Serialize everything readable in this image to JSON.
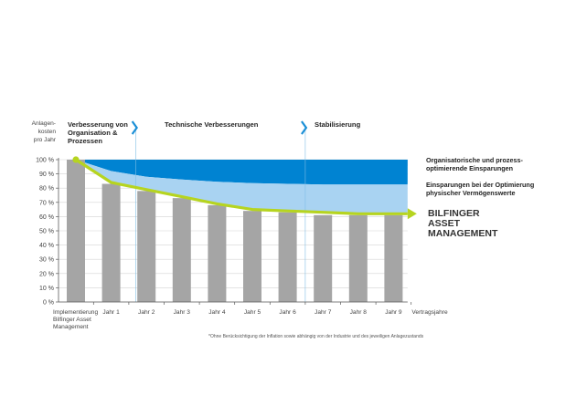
{
  "chart_data": {
    "type": "bar",
    "ylabel_lines": [
      "Anlagen-",
      "kosten",
      "pro Jahr"
    ],
    "xlabel": "Vertragsjahre",
    "ylim": [
      0,
      100
    ],
    "yticks": [
      "0 %",
      "10 %",
      "20 %",
      "30 %",
      "40 %",
      "50 %",
      "60 %",
      "70 %",
      "80 %",
      "90 %",
      "100 %"
    ],
    "categories": [
      "Implementierung Bilfinger Asset Management",
      "Jahr 1",
      "Jahr 2",
      "Jahr 3",
      "Jahr 4",
      "Jahr 5",
      "Jahr 6",
      "Jahr 7",
      "Jahr 8",
      "Jahr 9"
    ],
    "category_lines": [
      [
        "Implementierung",
        "Bilfinger Asset",
        "Management"
      ],
      [
        "Jahr 1"
      ],
      [
        "Jahr 2"
      ],
      [
        "Jahr 3"
      ],
      [
        "Jahr 4"
      ],
      [
        "Jahr 5"
      ],
      [
        "Jahr 6"
      ],
      [
        "Jahr 7"
      ],
      [
        "Jahr 8"
      ],
      [
        "Jahr 9"
      ]
    ],
    "series": [
      {
        "type": "bar",
        "values": [
          100,
          83,
          78,
          73,
          68,
          64,
          63,
          61,
          61,
          61
        ]
      },
      {
        "type": "line",
        "x": [
          0,
          1,
          2,
          3,
          4,
          5,
          6,
          7,
          8,
          9,
          9.4
        ],
        "values": [
          100,
          84,
          79,
          74,
          69,
          65,
          64,
          63,
          62,
          62,
          62
        ]
      }
    ],
    "bands": {
      "top": 100,
      "dark_lower": {
        "x": [
          0,
          1,
          2,
          3,
          4,
          5,
          6,
          7,
          8,
          9,
          9.4
        ],
        "values": [
          100,
          92,
          88,
          86,
          84.5,
          83.5,
          83,
          82.5,
          82.5,
          82.5,
          82.5
        ]
      },
      "light_lower": {
        "x": [
          0,
          1,
          2,
          3,
          4,
          5,
          6,
          7,
          8,
          9,
          9.4
        ],
        "values": [
          100,
          84,
          79,
          74,
          69,
          65,
          64,
          63,
          62,
          62,
          62
        ]
      }
    },
    "phases": [
      {
        "lines": [
          "Verbesserung von",
          "Organisation &",
          "Prozessen"
        ]
      },
      {
        "lines": [
          "Technische Verbesserungen"
        ]
      },
      {
        "lines": [
          "Stabilisierung"
        ]
      }
    ],
    "annotations": [
      {
        "lines": [
          "Organisatorische und prozess-",
          "optimierende Einsparungen"
        ]
      },
      {
        "lines": [
          "Einsparungen bei der Optimierung",
          "physischer Vermögenswerte"
        ]
      }
    ],
    "brand": {
      "lines": [
        "BILFINGER",
        "ASSET",
        "MANAGEMENT"
      ],
      "colors": [
        "#1a8fd6",
        "#b6d420",
        "#1a8fd6"
      ]
    },
    "footnote": "*Ohne Berücksichtigung der Inflation sowie abhängig von der Industrie und des jeweiligen Anlagezustands",
    "colors": {
      "bar": "#a5a5a5",
      "band_dark": "#0083d2",
      "band_light": "#a9d3f2",
      "line": "#b6d420",
      "axis": "#5a5a5a",
      "grid": "#d4d4d4",
      "phase_marker": "#1a8fd6"
    }
  }
}
